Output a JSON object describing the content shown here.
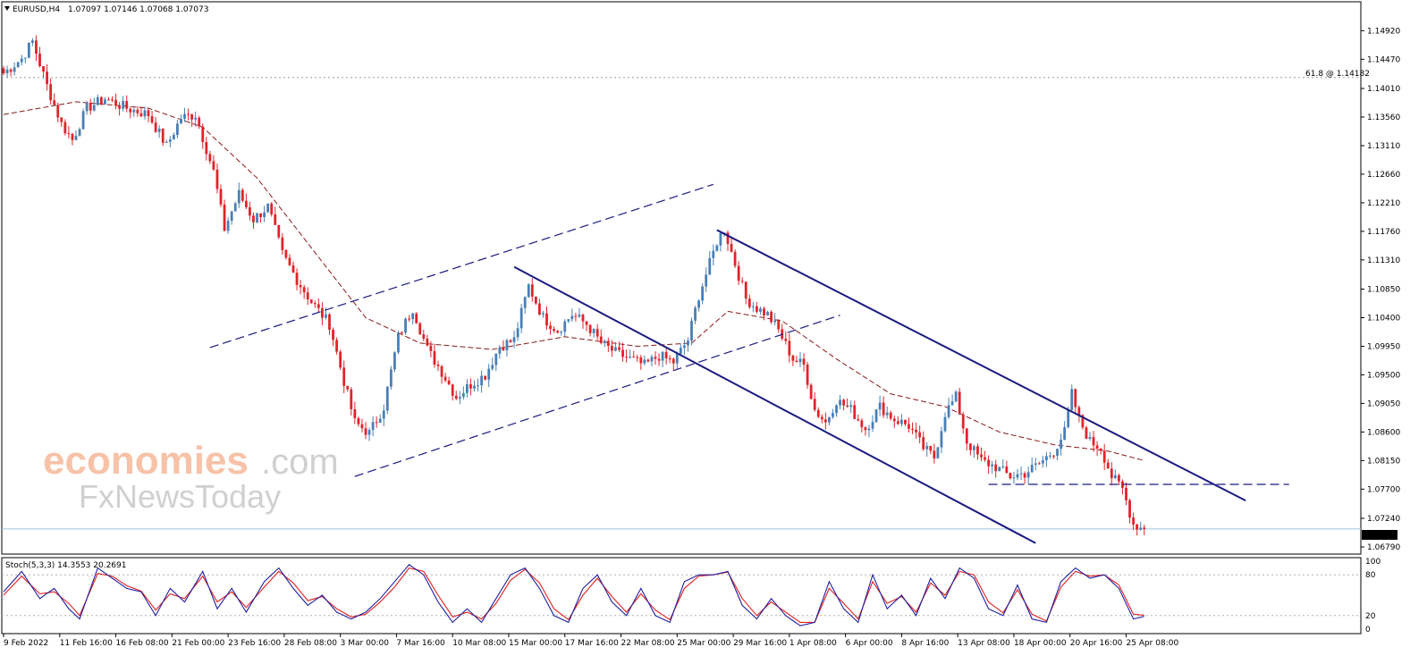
{
  "header": {
    "symbol": "EURUSD,H4",
    "ohlc": "1.07097 1.07146 1.07068 1.07073"
  },
  "fib_label": "61.8 @ 1.14182",
  "current_price_label": "1.07073",
  "stoch_label": "Stoch(5,3,3) 14.3553 20.2691",
  "watermark": {
    "line1": "economies",
    "line2": ".com",
    "line3": "FxNewsToday"
  },
  "colors": {
    "bull": "#4a7fb5",
    "bear": "#e0242a",
    "ma": "#8b1a1a",
    "trend": "#1a1a80",
    "stoch_main": "#2020a0",
    "stoch_signal": "#e02020",
    "watermark": "#f6b899"
  },
  "chart_data": {
    "type": "candlestick",
    "symbol": "EURUSD",
    "timeframe": "H4",
    "ylim": [
      1.0679,
      1.1515
    ],
    "price_ticks": [
      "1.14920",
      "1.14470",
      "1.14010",
      "1.13560",
      "1.13110",
      "1.12660",
      "1.12210",
      "1.11760",
      "1.11310",
      "1.10850",
      "1.10400",
      "1.09950",
      "1.09500",
      "1.09050",
      "1.08600",
      "1.08150",
      "1.07700",
      "1.07240",
      "1.06790"
    ],
    "time_labels": [
      "9 Feb 2022",
      "11 Feb 16:00",
      "16 Feb 08:00",
      "21 Feb 00:00",
      "23 Feb 16:00",
      "28 Feb 08:00",
      "3 Mar 00:00",
      "7 Mar 16:00",
      "10 Mar 08:00",
      "15 Mar 00:00",
      "17 Mar 16:00",
      "22 Mar 08:00",
      "25 Mar 00:00",
      "29 Mar 16:00",
      "1 Apr 08:00",
      "6 Apr 00:00",
      "8 Apr 16:00",
      "13 Apr 08:00",
      "18 Apr 00:00",
      "20 Apr 16:00",
      "25 Apr 08:00"
    ],
    "close_keypoints": [
      [
        0,
        1.1425
      ],
      [
        5,
        1.1448
      ],
      [
        8,
        1.1475
      ],
      [
        12,
        1.1405
      ],
      [
        16,
        1.1345
      ],
      [
        19,
        1.132
      ],
      [
        23,
        1.137
      ],
      [
        28,
        1.1385
      ],
      [
        34,
        1.137
      ],
      [
        40,
        1.136
      ],
      [
        45,
        1.131
      ],
      [
        49,
        1.1355
      ],
      [
        53,
        1.136
      ],
      [
        58,
        1.127
      ],
      [
        61,
        1.118
      ],
      [
        65,
        1.1235
      ],
      [
        69,
        1.1195
      ],
      [
        73,
        1.1215
      ],
      [
        77,
        1.114
      ],
      [
        81,
        1.11
      ],
      [
        85,
        1.1065
      ],
      [
        90,
        1.103
      ],
      [
        94,
        1.094
      ],
      [
        97,
        1.0875
      ],
      [
        101,
        1.0858
      ],
      [
        105,
        1.09
      ],
      [
        109,
        1.101
      ],
      [
        113,
        1.1055
      ],
      [
        117,
        1.099
      ],
      [
        121,
        1.0955
      ],
      [
        125,
        1.0915
      ],
      [
        129,
        1.0935
      ],
      [
        133,
        1.095
      ],
      [
        137,
        1.0995
      ],
      [
        141,
        1.1005
      ],
      [
        145,
        1.109
      ],
      [
        149,
        1.104
      ],
      [
        153,
        1.102
      ],
      [
        157,
        1.1045
      ],
      [
        161,
        1.103
      ],
      [
        165,
        1.1
      ],
      [
        169,
        1.0985
      ],
      [
        173,
        1.0975
      ],
      [
        177,
        1.0965
      ],
      [
        181,
        1.098
      ],
      [
        185,
        1.097
      ],
      [
        189,
        1.1005
      ],
      [
        192,
        1.1075
      ],
      [
        195,
        1.1125
      ],
      [
        197,
        1.116
      ],
      [
        199,
        1.118
      ],
      [
        202,
        1.1125
      ],
      [
        205,
        1.107
      ],
      [
        208,
        1.1055
      ],
      [
        211,
        1.1045
      ],
      [
        214,
        1.102
      ],
      [
        218,
        1.0975
      ],
      [
        221,
        1.0965
      ],
      [
        224,
        1.0895
      ],
      [
        227,
        1.0875
      ],
      [
        230,
        1.091
      ],
      [
        234,
        1.0895
      ],
      [
        238,
        1.0865
      ],
      [
        242,
        1.09
      ],
      [
        246,
        1.088
      ],
      [
        250,
        1.087
      ],
      [
        254,
        1.0835
      ],
      [
        257,
        1.082
      ],
      [
        260,
        1.089
      ],
      [
        263,
        1.0915
      ],
      [
        266,
        1.0845
      ],
      [
        270,
        1.0815
      ],
      [
        274,
        1.0805
      ],
      [
        278,
        1.079
      ],
      [
        282,
        1.0795
      ],
      [
        286,
        1.081
      ],
      [
        290,
        1.083
      ],
      [
        293,
        1.086
      ],
      [
        295,
        1.092
      ],
      [
        297,
        1.088
      ],
      [
        300,
        1.0845
      ],
      [
        303,
        1.0835
      ],
      [
        306,
        1.079
      ],
      [
        309,
        1.077
      ],
      [
        312,
        1.0715
      ],
      [
        315,
        1.0707
      ]
    ],
    "ma_keypoints": [
      [
        0,
        1.136
      ],
      [
        20,
        1.138
      ],
      [
        40,
        1.137
      ],
      [
        55,
        1.134
      ],
      [
        70,
        1.126
      ],
      [
        85,
        1.115
      ],
      [
        100,
        1.104
      ],
      [
        115,
        1.1
      ],
      [
        135,
        1.099
      ],
      [
        155,
        1.101
      ],
      [
        175,
        1.0995
      ],
      [
        190,
        1.1
      ],
      [
        200,
        1.105
      ],
      [
        215,
        1.1035
      ],
      [
        230,
        1.0975
      ],
      [
        245,
        1.092
      ],
      [
        260,
        1.09
      ],
      [
        275,
        1.086
      ],
      [
        290,
        1.084
      ],
      [
        305,
        1.083
      ],
      [
        315,
        1.0815
      ]
    ],
    "fib_level": 1.14182,
    "current_price": 1.07073,
    "horizontal_level": 1.07775,
    "trendlines": [
      {
        "style": "dashed",
        "from": [
          57,
          1.0993
        ],
        "to": [
          196,
          1.125
        ]
      },
      {
        "style": "dashed",
        "from": [
          97,
          1.079
        ],
        "to": [
          231,
          1.1044
        ]
      },
      {
        "style": "solid",
        "from": [
          141,
          1.112
        ],
        "to": [
          285,
          1.0685
        ]
      },
      {
        "style": "solid",
        "from": [
          197,
          1.1178
        ],
        "to": [
          343,
          1.0752
        ]
      }
    ],
    "indicator": {
      "name": "Stoch(5,3,3)",
      "main": 14.3553,
      "signal": 20.2691,
      "levels": [
        80,
        20
      ],
      "ticks": [
        "100",
        "80",
        "20",
        "0"
      ],
      "main_keypoints": [
        [
          0,
          55
        ],
        [
          5,
          85
        ],
        [
          10,
          45
        ],
        [
          14,
          60
        ],
        [
          18,
          30
        ],
        [
          21,
          15
        ],
        [
          26,
          90
        ],
        [
          30,
          75
        ],
        [
          34,
          60
        ],
        [
          38,
          55
        ],
        [
          42,
          20
        ],
        [
          46,
          60
        ],
        [
          50,
          40
        ],
        [
          55,
          85
        ],
        [
          59,
          30
        ],
        [
          63,
          60
        ],
        [
          67,
          25
        ],
        [
          72,
          70
        ],
        [
          76,
          90
        ],
        [
          80,
          60
        ],
        [
          84,
          35
        ],
        [
          88,
          50
        ],
        [
          92,
          25
        ],
        [
          96,
          15
        ],
        [
          100,
          25
        ],
        [
          104,
          45
        ],
        [
          108,
          70
        ],
        [
          112,
          95
        ],
        [
          116,
          80
        ],
        [
          120,
          40
        ],
        [
          124,
          10
        ],
        [
          128,
          30
        ],
        [
          132,
          10
        ],
        [
          136,
          45
        ],
        [
          140,
          80
        ],
        [
          144,
          90
        ],
        [
          148,
          60
        ],
        [
          152,
          20
        ],
        [
          156,
          10
        ],
        [
          160,
          60
        ],
        [
          164,
          80
        ],
        [
          168,
          40
        ],
        [
          172,
          20
        ],
        [
          176,
          60
        ],
        [
          180,
          20
        ],
        [
          184,
          10
        ],
        [
          188,
          70
        ],
        [
          192,
          80
        ],
        [
          196,
          80
        ],
        [
          200,
          85
        ],
        [
          204,
          35
        ],
        [
          208,
          15
        ],
        [
          212,
          45
        ],
        [
          216,
          20
        ],
        [
          220,
          5
        ],
        [
          224,
          10
        ],
        [
          228,
          70
        ],
        [
          232,
          30
        ],
        [
          236,
          10
        ],
        [
          240,
          80
        ],
        [
          244,
          30
        ],
        [
          248,
          50
        ],
        [
          252,
          20
        ],
        [
          256,
          75
        ],
        [
          260,
          45
        ],
        [
          264,
          90
        ],
        [
          268,
          75
        ],
        [
          272,
          30
        ],
        [
          276,
          20
        ],
        [
          280,
          65
        ],
        [
          284,
          15
        ],
        [
          288,
          10
        ],
        [
          292,
          70
        ],
        [
          296,
          90
        ],
        [
          300,
          75
        ],
        [
          304,
          80
        ],
        [
          308,
          60
        ],
        [
          312,
          15
        ],
        [
          316,
          20
        ]
      ],
      "signal_keypoints": [
        [
          0,
          50
        ],
        [
          5,
          78
        ],
        [
          10,
          52
        ],
        [
          14,
          55
        ],
        [
          18,
          38
        ],
        [
          21,
          20
        ],
        [
          26,
          82
        ],
        [
          30,
          78
        ],
        [
          34,
          64
        ],
        [
          38,
          56
        ],
        [
          42,
          28
        ],
        [
          46,
          52
        ],
        [
          50,
          45
        ],
        [
          55,
          78
        ],
        [
          59,
          40
        ],
        [
          63,
          55
        ],
        [
          67,
          32
        ],
        [
          72,
          62
        ],
        [
          76,
          85
        ],
        [
          80,
          68
        ],
        [
          84,
          42
        ],
        [
          88,
          48
        ],
        [
          92,
          30
        ],
        [
          96,
          18
        ],
        [
          100,
          22
        ],
        [
          104,
          40
        ],
        [
          108,
          62
        ],
        [
          112,
          90
        ],
        [
          116,
          85
        ],
        [
          120,
          50
        ],
        [
          124,
          18
        ],
        [
          128,
          25
        ],
        [
          132,
          15
        ],
        [
          136,
          38
        ],
        [
          140,
          72
        ],
        [
          144,
          88
        ],
        [
          148,
          68
        ],
        [
          152,
          30
        ],
        [
          156,
          14
        ],
        [
          160,
          50
        ],
        [
          164,
          75
        ],
        [
          168,
          48
        ],
        [
          172,
          25
        ],
        [
          176,
          52
        ],
        [
          180,
          28
        ],
        [
          184,
          14
        ],
        [
          188,
          60
        ],
        [
          192,
          78
        ],
        [
          196,
          80
        ],
        [
          200,
          84
        ],
        [
          204,
          45
        ],
        [
          208,
          20
        ],
        [
          212,
          40
        ],
        [
          216,
          25
        ],
        [
          220,
          10
        ],
        [
          224,
          10
        ],
        [
          228,
          60
        ],
        [
          232,
          38
        ],
        [
          236,
          15
        ],
        [
          240,
          70
        ],
        [
          244,
          38
        ],
        [
          248,
          48
        ],
        [
          252,
          25
        ],
        [
          256,
          68
        ],
        [
          260,
          50
        ],
        [
          264,
          85
        ],
        [
          268,
          80
        ],
        [
          272,
          40
        ],
        [
          276,
          24
        ],
        [
          280,
          58
        ],
        [
          284,
          22
        ],
        [
          288,
          12
        ],
        [
          292,
          62
        ],
        [
          296,
          85
        ],
        [
          300,
          78
        ],
        [
          304,
          80
        ],
        [
          308,
          65
        ],
        [
          312,
          22
        ],
        [
          316,
          20
        ]
      ]
    }
  }
}
